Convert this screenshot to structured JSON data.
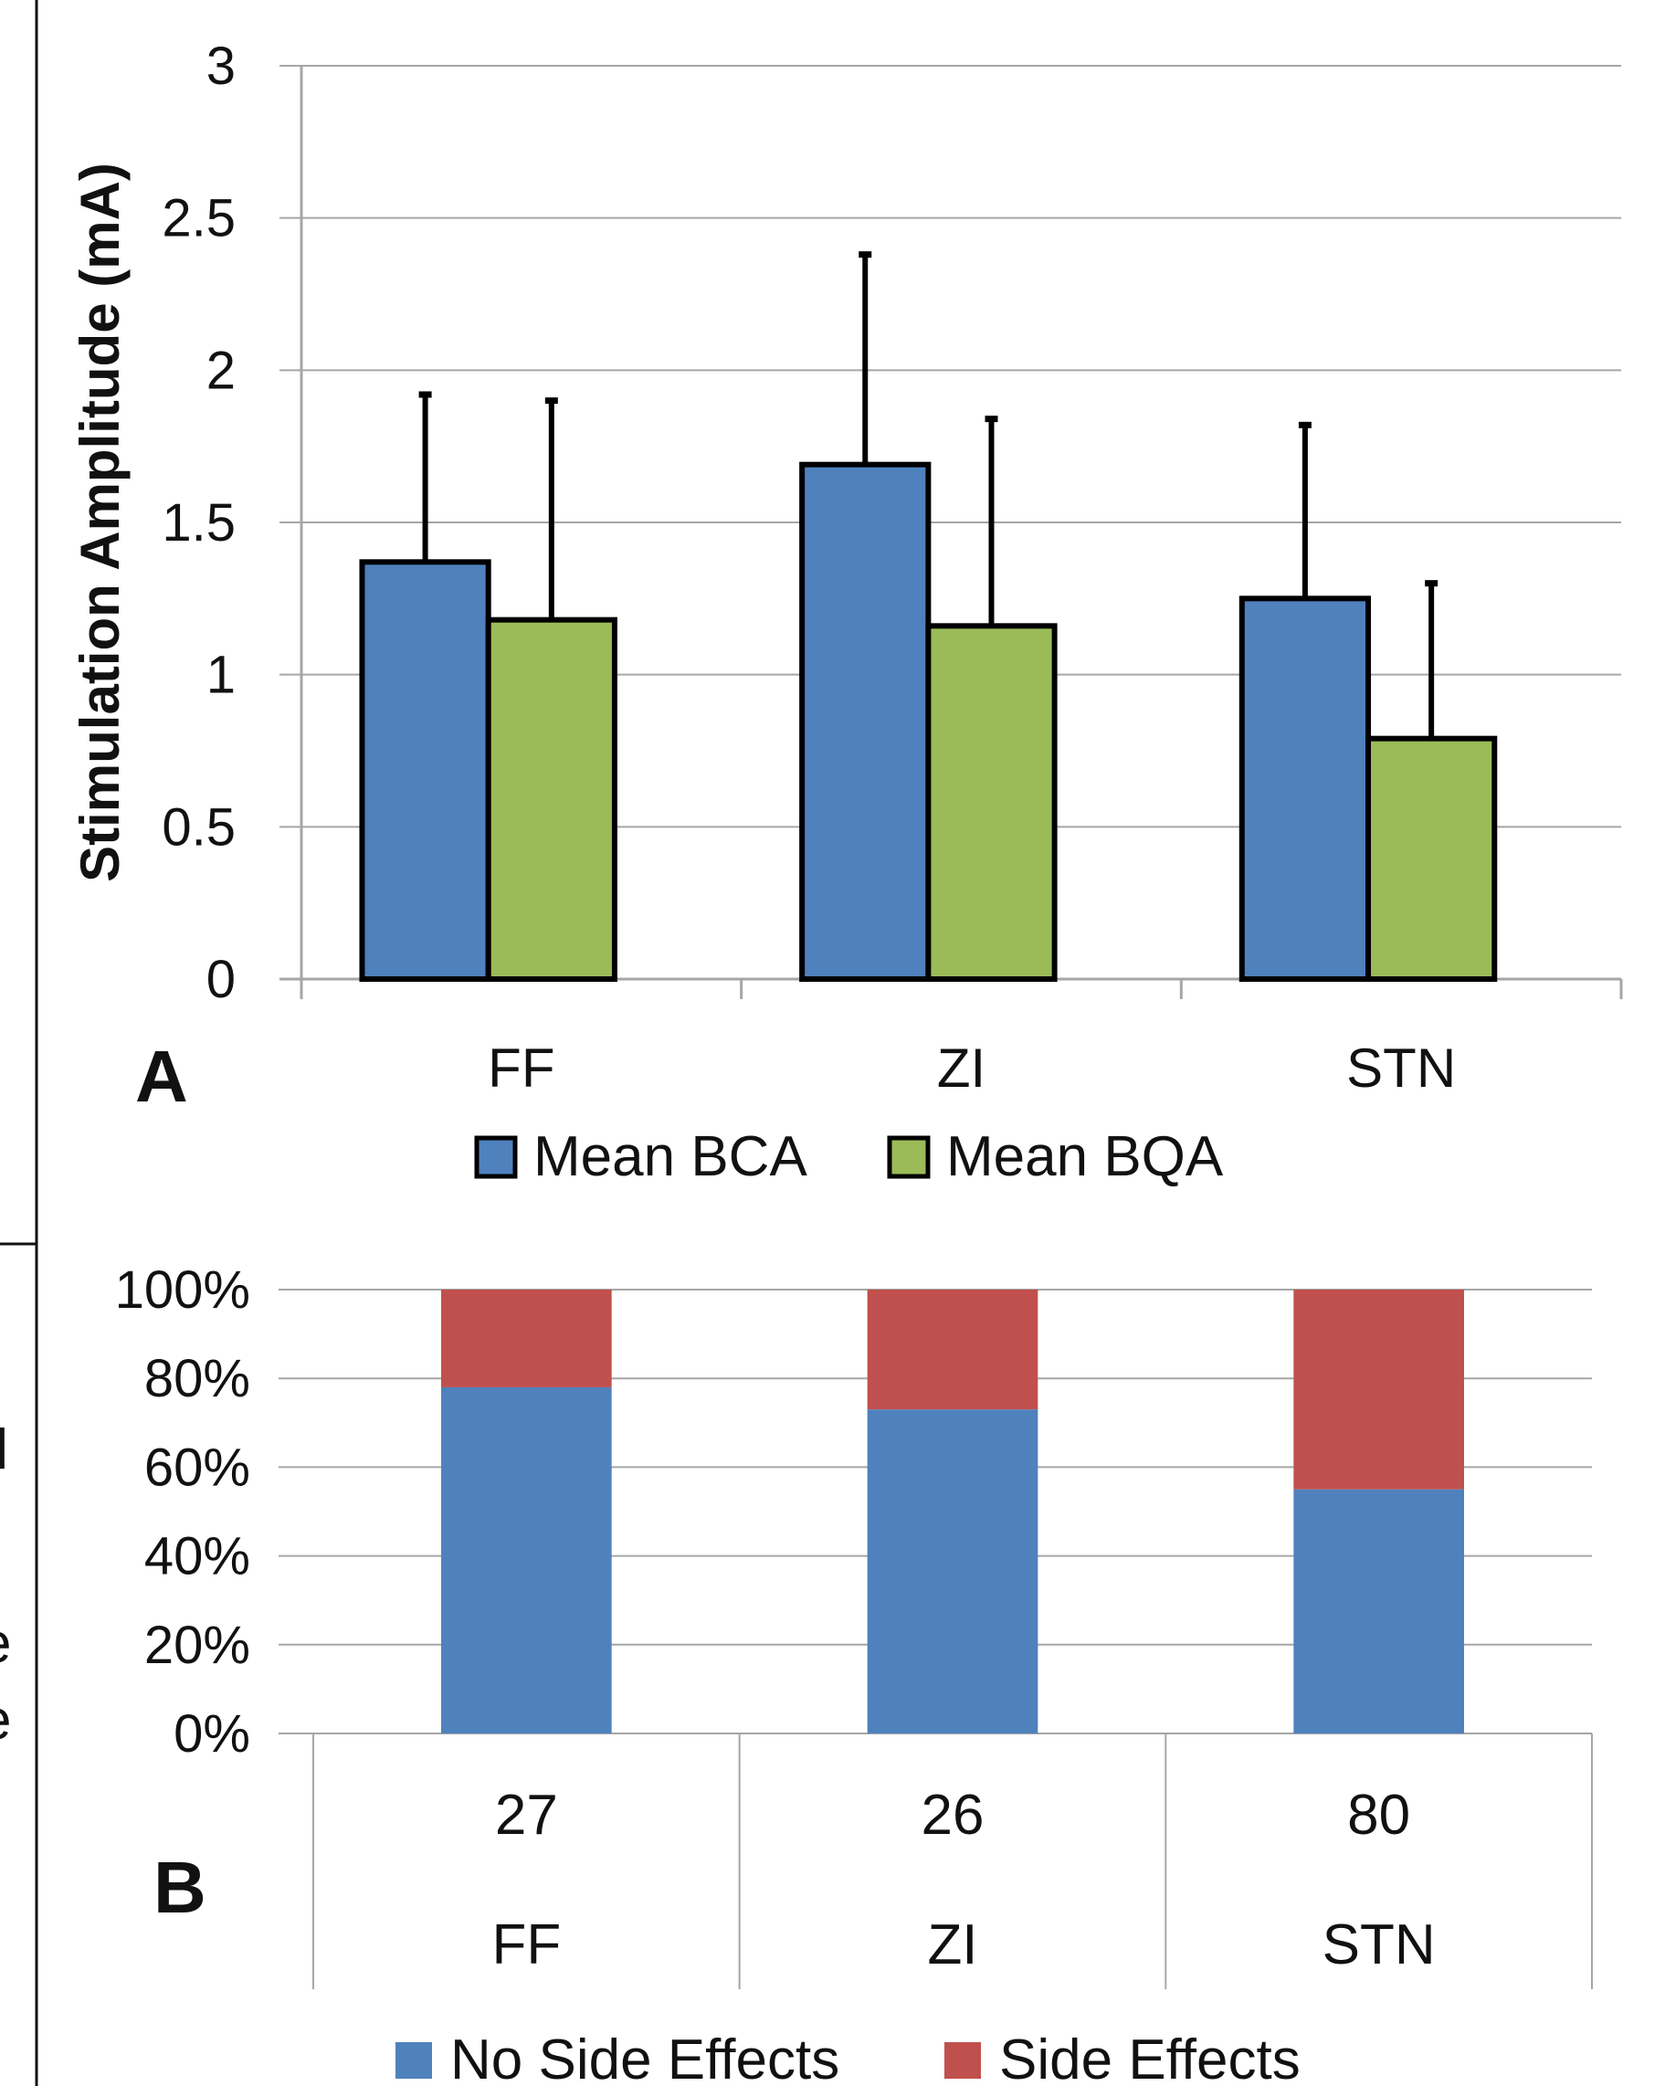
{
  "colors": {
    "blue": "#4F81BD",
    "green": "#9BBB59",
    "red": "#C0504D",
    "grid": "#A6A6A6",
    "text": "#111111"
  },
  "panel_a": {
    "letter": "A"
  },
  "panel_b": {
    "letter": "B"
  },
  "cropped_text_b": "l",
  "cropped_text_c": "e",
  "cropped_text_d": "e",
  "chart_data": [
    {
      "type": "bar",
      "panel": "A",
      "categories": [
        "FF",
        "ZI",
        "STN"
      ],
      "ylabel": "Stimulation Amplitude (mA)",
      "ylim": [
        0,
        3
      ],
      "yticks": [
        0,
        0.5,
        1,
        1.5,
        2,
        2.5,
        3
      ],
      "ytick_labels": [
        "0",
        "0.5",
        "1",
        "1.5",
        "2",
        "2.5",
        "3"
      ],
      "grid": true,
      "legend_position": "bottom",
      "series": [
        {
          "name": "Mean BCA",
          "color": "#4F81BD",
          "values": [
            1.37,
            1.69,
            1.25
          ],
          "error_upper": [
            1.92,
            2.38,
            1.82
          ]
        },
        {
          "name": "Mean BQA",
          "color": "#9BBB59",
          "values": [
            1.18,
            1.16,
            0.79
          ],
          "error_upper": [
            1.9,
            1.84,
            1.3
          ]
        }
      ]
    },
    {
      "type": "bar",
      "stacked": true,
      "panel": "B",
      "categories": [
        "FF",
        "ZI",
        "STN"
      ],
      "counts": [
        "27",
        "26",
        "80"
      ],
      "ylim": [
        0,
        100
      ],
      "yticks": [
        0,
        20,
        40,
        60,
        80,
        100
      ],
      "ytick_labels": [
        "0%",
        "20%",
        "40%",
        "60%",
        "80%",
        "100%"
      ],
      "grid": true,
      "legend_position": "bottom",
      "series": [
        {
          "name": "No Side Effects",
          "color": "#4F81BD",
          "values": [
            78,
            73,
            55
          ]
        },
        {
          "name": "Side Effects",
          "color": "#C0504D",
          "values": [
            22,
            27,
            45
          ]
        }
      ]
    }
  ]
}
